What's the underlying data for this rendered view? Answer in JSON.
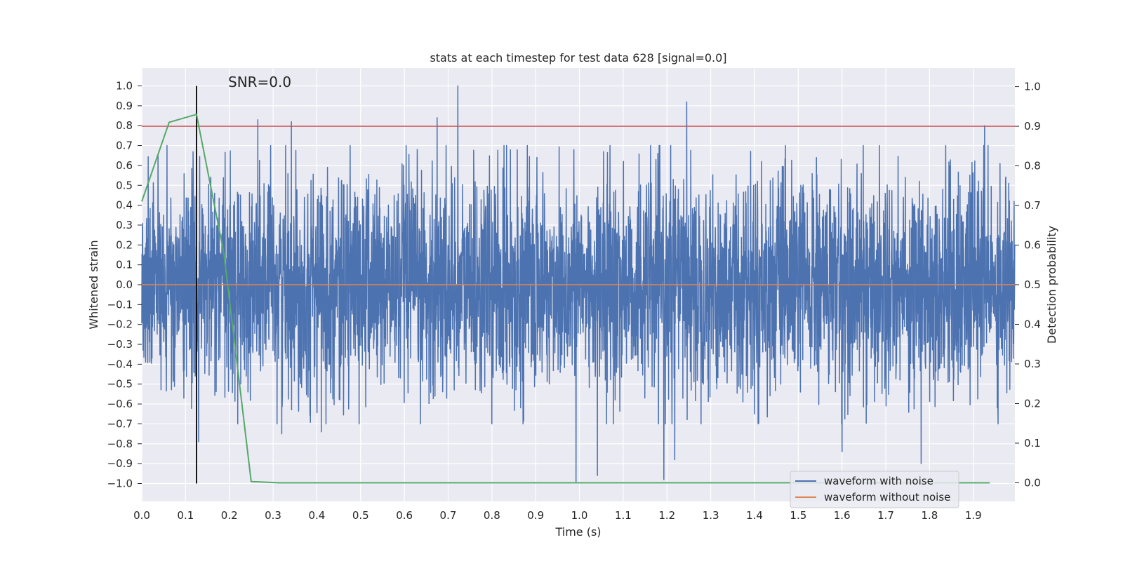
{
  "chart_data": {
    "type": "line",
    "title": "stats at each timestep for test data 628 [signal=0.0]",
    "xlabel": "Time (s)",
    "ylabel": "Whitened strain",
    "y2label": "Detection probability",
    "xlim": [
      0.0,
      1.995
    ],
    "ylim": [
      -1.09,
      1.09
    ],
    "y2lim": [
      -0.047,
      1.047
    ],
    "x_ticks": [
      "0.0",
      "0.1",
      "0.2",
      "0.3",
      "0.4",
      "0.5",
      "0.6",
      "0.7",
      "0.8",
      "0.9",
      "1.0",
      "1.1",
      "1.2",
      "1.3",
      "1.4",
      "1.5",
      "1.6",
      "1.7",
      "1.8",
      "1.9"
    ],
    "y_ticks": [
      "1.0",
      "0.9",
      "0.8",
      "0.7",
      "0.6",
      "0.5",
      "0.4",
      "0.3",
      "0.2",
      "0.1",
      "0.0",
      "−0.1",
      "−0.2",
      "−0.3",
      "−0.4",
      "−0.5",
      "−0.6",
      "−0.7",
      "−0.8",
      "−0.9",
      "−1.0"
    ],
    "y2_ticks": [
      "1.0",
      "0.9",
      "0.8",
      "0.7",
      "0.6",
      "0.5",
      "0.4",
      "0.3",
      "0.2",
      "0.1",
      "0.0"
    ],
    "grid": true,
    "legend_position": "lower right",
    "annotation": "SNR=0.0",
    "series": [
      {
        "name": "waveform with noise",
        "color": "#4c72b0",
        "kind": "noise",
        "sample_rate": 2048,
        "amplitude_std": 0.27,
        "peaks": [
          [
            0.265,
            0.83
          ],
          [
            0.342,
            0.82
          ],
          [
            0.675,
            0.84
          ],
          [
            0.722,
            1.0
          ],
          [
            1.245,
            0.92
          ],
          [
            1.926,
            0.8
          ],
          [
            0.992,
            -0.99
          ],
          [
            1.041,
            -0.96
          ],
          [
            1.193,
            -0.98
          ],
          [
            1.781,
            -0.9
          ],
          [
            0.32,
            -0.75
          ],
          [
            0.41,
            -0.74
          ],
          [
            0.13,
            -0.79
          ],
          [
            1.218,
            -0.88
          ],
          [
            1.6,
            -0.84
          ]
        ]
      },
      {
        "name": "waveform without noise",
        "color": "#dd8452",
        "x": [
          0.0,
          1.995
        ],
        "y": [
          0.0,
          0.0
        ]
      },
      {
        "name": "detection probability",
        "color": "#55a868",
        "axis": "right",
        "x": [
          0.0,
          0.0625,
          0.125,
          0.1875,
          0.25,
          0.3125,
          1.9375
        ],
        "y": [
          0.71,
          0.91,
          0.93,
          0.58,
          0.003,
          0.0,
          0.0
        ]
      }
    ],
    "threshold_line": {
      "value": 0.9,
      "axis": "right",
      "color": "#c44e52"
    },
    "marker_line": {
      "x": 0.125,
      "ymin": -1.0,
      "ymax": 1.0,
      "color": "#000000"
    }
  }
}
